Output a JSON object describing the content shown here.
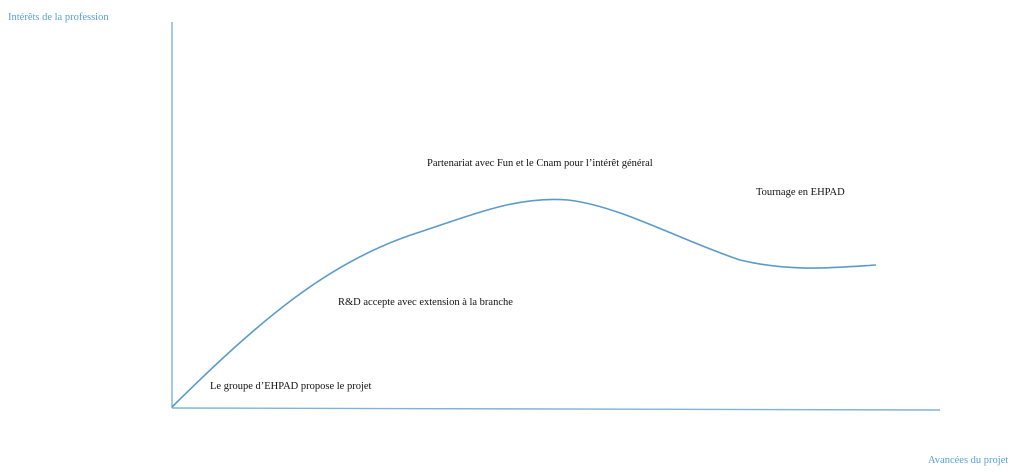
{
  "axes": {
    "y_label": "Intérêts de la  profession",
    "x_label": "Avancées du projet"
  },
  "annotations": {
    "proposal": "Le groupe d’EHPAD propose le projet",
    "rd_accept": "R&D accepte avec extension à la branche",
    "partnership": "Partenariat avec Fun et le Cnam pour l’intérêt général",
    "filming": "Tournage en EHPAD"
  },
  "colors": {
    "axis": "#7fb3d8",
    "curve": "#5b9bc9",
    "label_accent": "#5a9fd1"
  }
}
